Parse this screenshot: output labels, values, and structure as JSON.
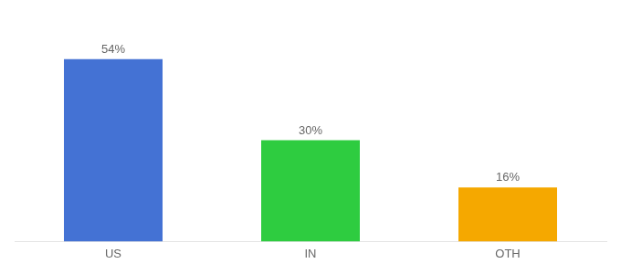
{
  "chart_data": {
    "type": "bar",
    "categories": [
      "US",
      "IN",
      "OTH"
    ],
    "values": [
      54,
      30,
      16
    ],
    "value_labels": [
      "54%",
      "30%",
      "16%"
    ],
    "colors": [
      "#4472d4",
      "#2ecc40",
      "#f5a800"
    ],
    "ylim": [
      0,
      65
    ],
    "grid": false,
    "data_labels": true,
    "tick_labels": "x"
  }
}
